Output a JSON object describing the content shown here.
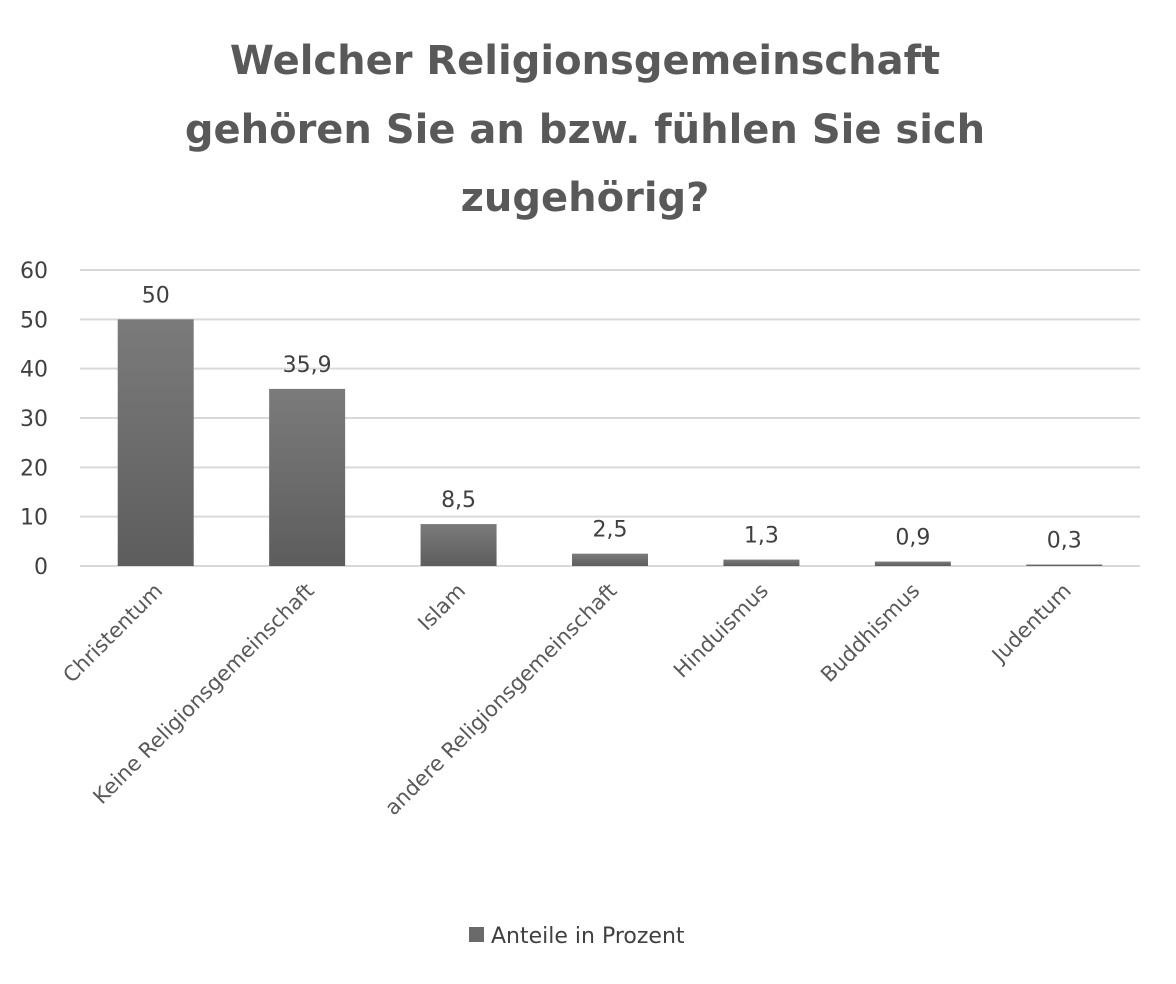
{
  "chart_data": {
    "type": "bar",
    "title": [
      "Welcher Religionsgemeinschaft",
      "gehören Sie an bzw. fühlen Sie sich",
      "zugehörig?"
    ],
    "categories": [
      "Christentum",
      "Keine Religionsgemeinschaft",
      "Islam",
      "andere Religionsgemeinschaft",
      "Hinduismus",
      "Buddhismus",
      "Judentum"
    ],
    "series": [
      {
        "name": "Anteile in Prozent",
        "values": [
          50,
          35.9,
          8.5,
          2.5,
          1.3,
          0.9,
          0.3
        ],
        "labels": [
          "50",
          "35,9",
          "8,5",
          "2,5",
          "1,3",
          "0,9",
          "0,3"
        ]
      }
    ],
    "xlabel": "",
    "ylabel": "",
    "ylim": [
      0,
      60
    ],
    "yticks": [
      0,
      10,
      20,
      30,
      40,
      50,
      60
    ],
    "grid": true,
    "legend": "bottom",
    "colors": {
      "bar": "#6a6a6a",
      "grid": "#d9d9d9",
      "text": "#595959"
    }
  }
}
